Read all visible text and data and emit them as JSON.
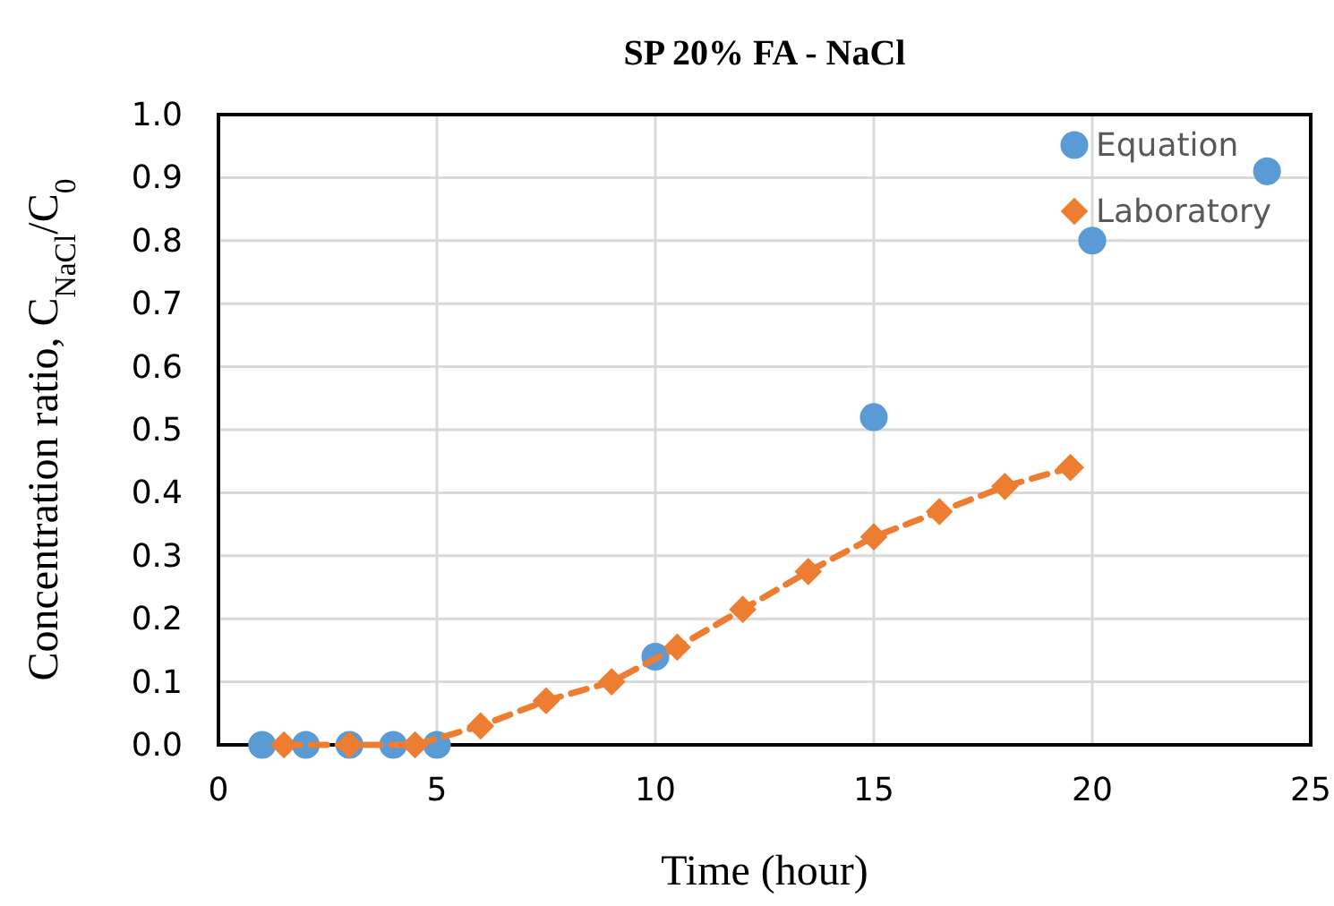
{
  "chart_data": {
    "type": "scatter",
    "title": "SP 20% FA - NaCl",
    "xlabel": "Time (hour)",
    "ylabel": "Concentration ratio, C$_{NaCl}$/C$_{0}$",
    "xlim": [
      0,
      25
    ],
    "xticks": [
      0,
      5,
      10,
      15,
      20,
      25
    ],
    "ylim": [
      0,
      1
    ],
    "yticks": [
      {
        "value": 0,
        "label": "0.0"
      },
      {
        "value": 0.1,
        "label": "0.1"
      },
      {
        "value": 0.2,
        "label": "0.2"
      },
      {
        "value": 0.3,
        "label": "0.3"
      },
      {
        "value": 0.4,
        "label": "0.4"
      },
      {
        "value": 0.5,
        "label": "0.5"
      },
      {
        "value": 0.6,
        "label": "0.6"
      },
      {
        "value": 0.7,
        "label": "0.7"
      },
      {
        "value": 0.8,
        "label": "0.8"
      },
      {
        "value": 0.9,
        "label": "0.9"
      },
      {
        "value": 1,
        "label": "1.0"
      }
    ],
    "grid": true,
    "legend": "top right",
    "series": [
      {
        "name": "Equation",
        "type": "scatter",
        "marker": "circle",
        "color": "#5b9bd5",
        "x": [
          1,
          2,
          3,
          4,
          5,
          10,
          15,
          20,
          24
        ],
        "values": [
          0,
          0,
          0,
          0,
          0,
          0.14,
          0.52,
          0.8,
          0.91
        ]
      },
      {
        "name": "Laboratory",
        "type": "line",
        "marker": "diamond",
        "line_style": "dashed",
        "color": "#ed7d31",
        "x": [
          1.5,
          3,
          4.5,
          6,
          7.5,
          9,
          10.5,
          12,
          13.5,
          15,
          16.5,
          18,
          19.5
        ],
        "values": [
          0,
          0,
          0,
          0.03,
          0.07,
          0.1,
          0.155,
          0.215,
          0.275,
          0.33,
          0.37,
          0.41,
          0.44
        ]
      }
    ]
  }
}
